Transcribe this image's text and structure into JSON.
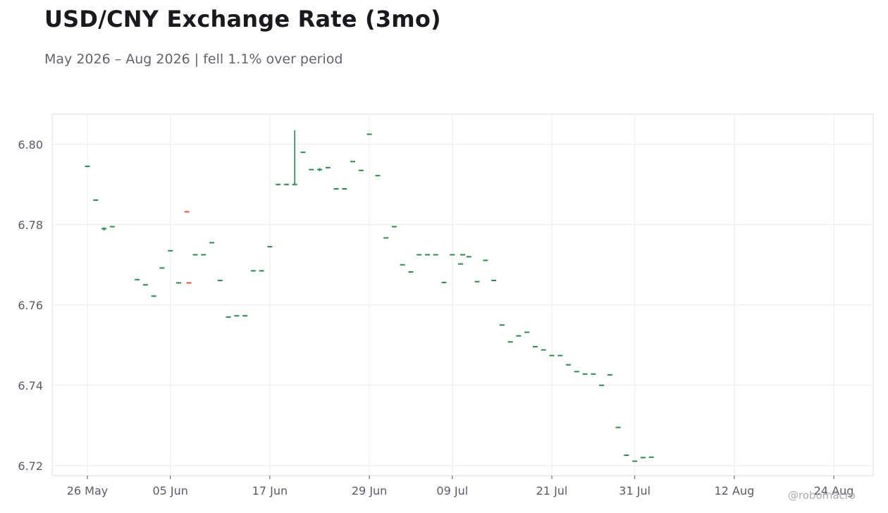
{
  "header": {
    "title": "USD/CNY Exchange Rate (3mo)",
    "subtitle": "May 2026 – Aug 2026 | fell 1.1% over period"
  },
  "credit": "@robomacro",
  "colors": {
    "up": "#2e8b4e",
    "down": "#e0533a",
    "grid": "#ececec",
    "frame": "#dddddd",
    "tick_text": "#5a5c63"
  },
  "chart_data": {
    "type": "ohlc",
    "title": "USD/CNY Exchange Rate (3mo)",
    "subtitle": "May 2026 – Aug 2026 | fell 1.1% over period",
    "xlabel": "",
    "ylabel": "",
    "ylim": [
      6.7175,
      6.8075
    ],
    "grid": true,
    "x_tick_labels": [
      "26 May",
      "05 Jun",
      "17 Jun",
      "29 Jun",
      "09 Jul",
      "21 Jul",
      "31 Jul",
      "12 Aug",
      "24 Aug"
    ],
    "y_tick_labels": [
      "6.72",
      "6.74",
      "6.76",
      "6.78",
      "6.80"
    ],
    "x_ticks": [
      "2026-05-26",
      "2026-06-05",
      "2026-06-17",
      "2026-06-29",
      "2026-07-09",
      "2026-07-21",
      "2026-07-31",
      "2026-08-12",
      "2026-08-24"
    ],
    "y_ticks": [
      6.72,
      6.74,
      6.76,
      6.78,
      6.8
    ],
    "x_range": [
      "2026-05-21T18:00",
      "2026-08-28T18:00"
    ],
    "fields": [
      "date",
      "open",
      "high",
      "low",
      "close"
    ],
    "bars": [
      [
        "2026-05-26",
        6.7945,
        6.7945,
        6.7945,
        6.7945
      ],
      [
        "2026-05-27",
        6.7861,
        6.7861,
        6.7861,
        6.7861
      ],
      [
        "2026-05-28",
        6.779,
        6.7793,
        6.7787,
        6.779
      ],
      [
        "2026-05-29",
        6.7795,
        6.7795,
        6.7795,
        6.7795
      ],
      [
        "2026-06-01",
        6.7663,
        6.7663,
        6.7663,
        6.7663
      ],
      [
        "2026-06-02",
        6.765,
        6.765,
        6.765,
        6.765
      ],
      [
        "2026-06-03",
        6.7622,
        6.7622,
        6.7622,
        6.7622
      ],
      [
        "2026-06-04",
        6.7692,
        6.7692,
        6.7692,
        6.7692
      ],
      [
        "2026-06-05",
        6.7735,
        6.7735,
        6.7735,
        6.7735
      ],
      [
        "2026-06-06",
        6.7655,
        6.7655,
        6.7655,
        6.7655
      ],
      [
        "2026-06-07",
        6.7832,
        6.7832,
        6.7832,
        6.7832
      ],
      [
        "2026-06-07T06:00",
        6.7655,
        6.7655,
        6.7655,
        6.7655
      ],
      [
        "2026-06-08",
        6.7725,
        6.7725,
        6.7725,
        6.7725
      ],
      [
        "2026-06-09",
        6.7725,
        6.7725,
        6.7725,
        6.7725
      ],
      [
        "2026-06-10",
        6.7755,
        6.7755,
        6.7755,
        6.7755
      ],
      [
        "2026-06-11",
        6.7661,
        6.7661,
        6.7661,
        6.7661
      ],
      [
        "2026-06-12",
        6.757,
        6.757,
        6.757,
        6.757
      ],
      [
        "2026-06-13",
        6.7573,
        6.7573,
        6.7573,
        6.7573
      ],
      [
        "2026-06-14",
        6.7573,
        6.7573,
        6.7573,
        6.7573
      ],
      [
        "2026-06-15",
        6.7685,
        6.7685,
        6.7685,
        6.7685
      ],
      [
        "2026-06-16",
        6.7685,
        6.7685,
        6.7685,
        6.7685
      ],
      [
        "2026-06-17",
        6.7745,
        6.7745,
        6.7745,
        6.7745
      ],
      [
        "2026-06-18",
        6.79,
        6.79,
        6.79,
        6.79
      ],
      [
        "2026-06-19",
        6.79,
        6.79,
        6.79,
        6.79
      ],
      [
        "2026-06-20",
        6.79,
        6.8035,
        6.79,
        6.79
      ],
      [
        "2026-06-21",
        6.798,
        6.798,
        6.798,
        6.798
      ],
      [
        "2026-06-22",
        6.7937,
        6.7937,
        6.7937,
        6.7937
      ],
      [
        "2026-06-23",
        6.7937,
        6.7941,
        6.7935,
        6.7937
      ],
      [
        "2026-06-24",
        6.7942,
        6.7942,
        6.7942,
        6.7942
      ],
      [
        "2026-06-25",
        6.7889,
        6.7889,
        6.7889,
        6.7889
      ],
      [
        "2026-06-26",
        6.7889,
        6.7889,
        6.7889,
        6.7889
      ],
      [
        "2026-06-27",
        6.7957,
        6.7957,
        6.7957,
        6.7957
      ],
      [
        "2026-06-28",
        6.7935,
        6.7935,
        6.7935,
        6.7935
      ],
      [
        "2026-06-29",
        6.8025,
        6.8025,
        6.8025,
        6.8025
      ],
      [
        "2026-06-30",
        6.7922,
        6.7922,
        6.7922,
        6.7922
      ],
      [
        "2026-07-01",
        6.7767,
        6.7767,
        6.7767,
        6.7767
      ],
      [
        "2026-07-02",
        6.7795,
        6.7795,
        6.7795,
        6.7795
      ],
      [
        "2026-07-03",
        6.77,
        6.77,
        6.77,
        6.77
      ],
      [
        "2026-07-04",
        6.7682,
        6.7682,
        6.7682,
        6.7682
      ],
      [
        "2026-07-05",
        6.7725,
        6.7725,
        6.7725,
        6.7725
      ],
      [
        "2026-07-06",
        6.7725,
        6.7725,
        6.7725,
        6.7725
      ],
      [
        "2026-07-07",
        6.7725,
        6.7725,
        6.7725,
        6.7725
      ],
      [
        "2026-07-08",
        6.7656,
        6.7656,
        6.7656,
        6.7656
      ],
      [
        "2026-07-09",
        6.7725,
        6.7725,
        6.7725,
        6.7725
      ],
      [
        "2026-07-10",
        6.7702,
        6.7702,
        6.7702,
        6.7702
      ],
      [
        "2026-07-10T06:00",
        6.7725,
        6.7725,
        6.7725,
        6.7725
      ],
      [
        "2026-07-11",
        6.772,
        6.772,
        6.772,
        6.772
      ],
      [
        "2026-07-12",
        6.7658,
        6.7658,
        6.7658,
        6.7658
      ],
      [
        "2026-07-13",
        6.7711,
        6.7711,
        6.7711,
        6.7711
      ],
      [
        "2026-07-14",
        6.7661,
        6.7661,
        6.7661,
        6.7661
      ],
      [
        "2026-07-15",
        6.755,
        6.755,
        6.755,
        6.755
      ],
      [
        "2026-07-16",
        6.7508,
        6.7508,
        6.7508,
        6.7508
      ],
      [
        "2026-07-17",
        6.7523,
        6.7523,
        6.7523,
        6.7523
      ],
      [
        "2026-07-18",
        6.7532,
        6.7532,
        6.7532,
        6.7532
      ],
      [
        "2026-07-19",
        6.7496,
        6.7496,
        6.7496,
        6.7496
      ],
      [
        "2026-07-20",
        6.7488,
        6.7488,
        6.7488,
        6.7488
      ],
      [
        "2026-07-21",
        6.7474,
        6.7474,
        6.7474,
        6.7474
      ],
      [
        "2026-07-22",
        6.7474,
        6.7474,
        6.7474,
        6.7474
      ],
      [
        "2026-07-23",
        6.7451,
        6.7451,
        6.7451,
        6.7451
      ],
      [
        "2026-07-24",
        6.7434,
        6.7434,
        6.7434,
        6.7434
      ],
      [
        "2026-07-25",
        6.7428,
        6.7428,
        6.7428,
        6.7428
      ],
      [
        "2026-07-26",
        6.7428,
        6.7428,
        6.7428,
        6.7428
      ],
      [
        "2026-07-27",
        6.74,
        6.74,
        6.74,
        6.74
      ],
      [
        "2026-07-28",
        6.7426,
        6.7426,
        6.7426,
        6.7426
      ],
      [
        "2026-07-29",
        6.7295,
        6.7295,
        6.7295,
        6.7295
      ],
      [
        "2026-07-30",
        6.7226,
        6.7226,
        6.7226,
        6.7226
      ],
      [
        "2026-07-31",
        6.7211,
        6.7211,
        6.7211,
        6.7211
      ],
      [
        "2026-08-01",
        6.722,
        6.722,
        6.722,
        6.722
      ],
      [
        "2026-08-02",
        6.7221,
        6.7221,
        6.7221,
        6.7221
      ]
    ]
  }
}
